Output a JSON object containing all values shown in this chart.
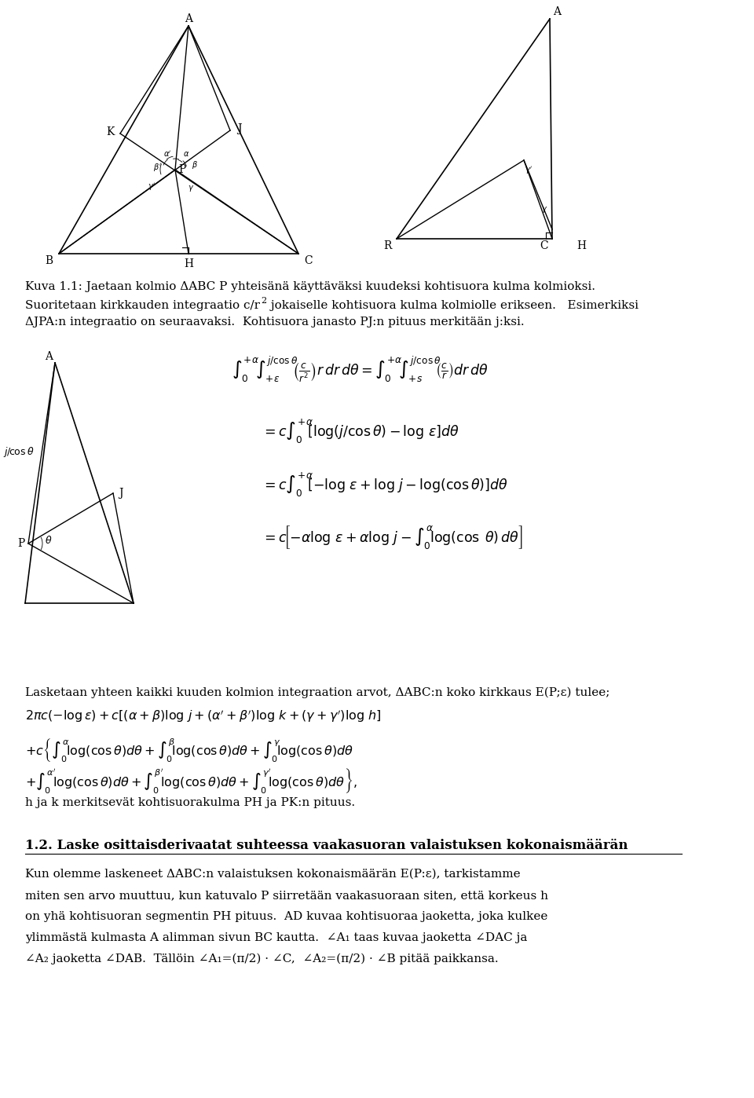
{
  "page_width": 9.6,
  "page_height": 13.98,
  "bg_color": "#ffffff",
  "text_color": "#000000",
  "fig1_caption": "Kuva 1.1: Jaetaan kolmio ΔABC P yhteisänä käyttäväksi kuudeksi kohtisuora kulma kolmioksi.",
  "text_line1a": "Suoritetaan kirkkauden integraatio c/r",
  "text_line1b": " jokaiselle kohtisuora kulma kolmiolle erikseen.   Esimerkiksi",
  "text_line2": "ΔJPA:n integraatio on seuraavaksi.  Kohtisuora janasto PJ:n pituus merkitään j:ksi.",
  "lasketaan": "Lasketaan yhteen kaikki kuuden kolmion integraation arvot, ΔABC:n koko kirkkaus E(P;ε) tulee;",
  "sum_line2": "2πc( - logε) + c [(α+β)log j + (α +β )log k + (γ+γ )log h]",
  "sum_line3a": "+ c{",
  "sum_line4": "h ja k merkitsevät kohtisuorakulma PH ja PK:n pituus.",
  "section_title": "1.2. Laske osittaisderivaatat suhteessa vaakasuoran valaistuksen kokonaismäärän",
  "para_lines": [
    "Kun olemme laskeneet ΔABC:n valaistuksen kokonaismäärän E(P:ε), tarkistamme",
    "miten sen arvo muuttuu, kun katuvalo P siirretään vaakasuoraan siten, että korkeus h",
    "on yhä kohtisuoran segmentin PH pituus.  AD kuvaa kohtisuoraa jaoketta, joka kulkee",
    "ylimmästä kulmasta A alimman sivun BC kautta.  ∠A₁ taas kuvaa jaoketta ∠DAC ja",
    "∠A₂ jaoketta ∠DAB.  Tällöin ∠A₁=(π/2) · ∠C,  ∠A₂=(π/2) · ∠B pitää paikkansa."
  ]
}
